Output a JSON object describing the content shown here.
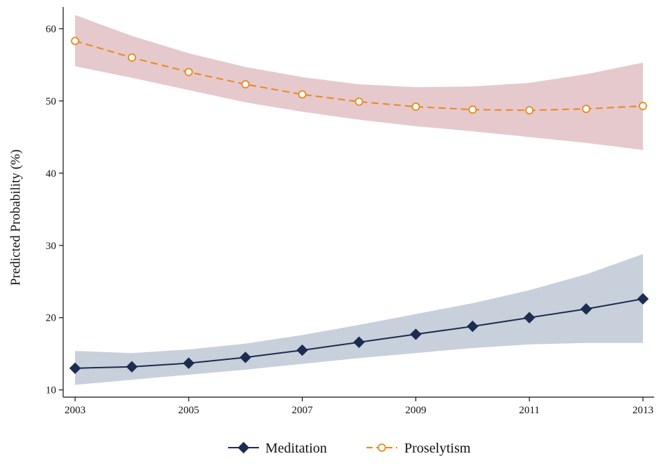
{
  "chart_data": {
    "type": "line",
    "title": "",
    "xlabel": "",
    "ylabel": "Predicted Probability (%)",
    "x": [
      2003,
      2004,
      2005,
      2006,
      2007,
      2008,
      2009,
      2010,
      2011,
      2012,
      2013
    ],
    "xticks": [
      2003,
      2005,
      2007,
      2009,
      2011,
      2013
    ],
    "xtick_labels": [
      "2003",
      "2005",
      "2007",
      "2009",
      "2011",
      "2013"
    ],
    "yticks": [
      10,
      20,
      30,
      40,
      50,
      60
    ],
    "ytick_labels": [
      "10",
      "20",
      "30",
      "40",
      "50",
      "60"
    ],
    "xlim": [
      2003,
      2013
    ],
    "ylim": [
      9,
      63
    ],
    "grid": false,
    "legend_position": "bottom",
    "series": [
      {
        "name": "Meditation",
        "values": [
          13.0,
          13.2,
          13.7,
          14.5,
          15.5,
          16.6,
          17.7,
          18.8,
          20.0,
          21.2,
          22.6
        ],
        "ci_lower": [
          10.7,
          11.4,
          12.1,
          12.8,
          13.6,
          14.4,
          15.1,
          15.8,
          16.3,
          16.5,
          16.5
        ],
        "ci_upper": [
          15.4,
          15.1,
          15.6,
          16.4,
          17.6,
          19.0,
          20.5,
          22.0,
          23.8,
          26.0,
          28.8
        ],
        "color": "#1c2d4f",
        "band_color": "#c8d0dc",
        "marker": "diamond",
        "line_style": "solid"
      },
      {
        "name": "Proselytism",
        "values": [
          58.3,
          56.0,
          54.0,
          52.3,
          50.9,
          49.9,
          49.2,
          48.8,
          48.7,
          48.9,
          49.3
        ],
        "ci_lower": [
          54.8,
          53.2,
          51.5,
          49.8,
          48.5,
          47.4,
          46.5,
          45.8,
          45.0,
          44.2,
          43.2
        ],
        "ci_upper": [
          61.9,
          59.0,
          56.6,
          54.7,
          53.3,
          52.3,
          51.9,
          52.0,
          52.5,
          53.7,
          55.3
        ],
        "color": "#e8891e",
        "band_color": "#e6c9cc",
        "marker": "circle",
        "line_style": "dashed"
      }
    ]
  }
}
